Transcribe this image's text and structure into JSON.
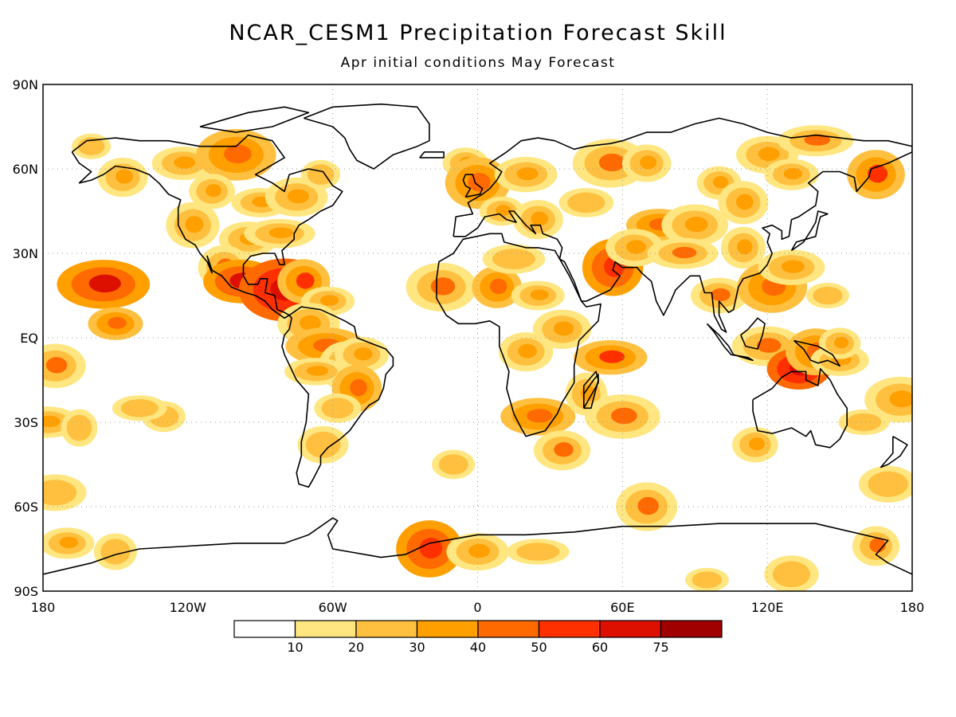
{
  "title": "NCAR_CESM1 Precipitation Forecast Skill",
  "subtitle": "Apr initial conditions  May Forecast",
  "map": {
    "projection": "equirectangular",
    "lon_range": [
      -180,
      180
    ],
    "lat_range": [
      -90,
      90
    ],
    "grid": true,
    "lat_labels": [
      "90N",
      "60N",
      "30N",
      "EQ",
      "30S",
      "60S",
      "90S"
    ],
    "lon_labels": [
      "180",
      "120W",
      "60W",
      "0",
      "60E",
      "120E",
      "180"
    ]
  },
  "legend": {
    "placement": "bottom-center",
    "colors": [
      "#ffffff",
      "#ffe680",
      "#ffc040",
      "#ffa000",
      "#ff6a00",
      "#ff3000",
      "#dd1000",
      "#a00000"
    ],
    "labels": [
      "10",
      "20",
      "30",
      "40",
      "50",
      "60",
      "75"
    ]
  },
  "skill_regions": [
    {
      "lon": -160,
      "lat": 68,
      "value": 25
    },
    {
      "lon": -147,
      "lat": 57,
      "value": 30
    },
    {
      "lon": -122,
      "lat": 62,
      "value": 35
    },
    {
      "lon": -100,
      "lat": 65,
      "value": 45
    },
    {
      "lon": -110,
      "lat": 52,
      "value": 30
    },
    {
      "lon": -90,
      "lat": 48,
      "value": 35
    },
    {
      "lon": -75,
      "lat": 50,
      "value": 30
    },
    {
      "lon": -65,
      "lat": 58,
      "value": 25
    },
    {
      "lon": -118,
      "lat": 40,
      "value": 35
    },
    {
      "lon": -95,
      "lat": 35,
      "value": 30
    },
    {
      "lon": -82,
      "lat": 37,
      "value": 35
    },
    {
      "lon": -105,
      "lat": 25,
      "value": 40
    },
    {
      "lon": -98,
      "lat": 20,
      "value": 60
    },
    {
      "lon": -80,
      "lat": 17,
      "value": 65
    },
    {
      "lon": -72,
      "lat": 20,
      "value": 50
    },
    {
      "lon": -62,
      "lat": 13,
      "value": 35
    },
    {
      "lon": -70,
      "lat": 5,
      "value": 35
    },
    {
      "lon": -63,
      "lat": -3,
      "value": 45
    },
    {
      "lon": -55,
      "lat": -10,
      "value": 40
    },
    {
      "lon": -48,
      "lat": -6,
      "value": 30
    },
    {
      "lon": -67,
      "lat": -12,
      "value": 30
    },
    {
      "lon": -50,
      "lat": -18,
      "value": 45
    },
    {
      "lon": -58,
      "lat": -25,
      "value": 25
    },
    {
      "lon": -64,
      "lat": -38,
      "value": 20
    },
    {
      "lon": -155,
      "lat": 19,
      "value": 60
    },
    {
      "lon": -150,
      "lat": 5,
      "value": 45
    },
    {
      "lon": -175,
      "lat": -10,
      "value": 40
    },
    {
      "lon": -178,
      "lat": -30,
      "value": 30
    },
    {
      "lon": -165,
      "lat": -32,
      "value": 20
    },
    {
      "lon": -130,
      "lat": -28,
      "value": 20
    },
    {
      "lon": -140,
      "lat": -25,
      "value": 25
    },
    {
      "lon": -175,
      "lat": -55,
      "value": 25
    },
    {
      "lon": -5,
      "lat": 62,
      "value": 30
    },
    {
      "lon": 0,
      "lat": 55,
      "value": 45
    },
    {
      "lon": 20,
      "lat": 58,
      "value": 30
    },
    {
      "lon": 10,
      "lat": 45,
      "value": 35
    },
    {
      "lon": 25,
      "lat": 42,
      "value": 30
    },
    {
      "lon": 45,
      "lat": 48,
      "value": 25
    },
    {
      "lon": 55,
      "lat": 62,
      "value": 40
    },
    {
      "lon": 70,
      "lat": 62,
      "value": 35
    },
    {
      "lon": 75,
      "lat": 40,
      "value": 45
    },
    {
      "lon": 90,
      "lat": 40,
      "value": 35
    },
    {
      "lon": 100,
      "lat": 55,
      "value": 35
    },
    {
      "lon": 110,
      "lat": 48,
      "value": 30
    },
    {
      "lon": 120,
      "lat": 65,
      "value": 35
    },
    {
      "lon": 140,
      "lat": 70,
      "value": 40
    },
    {
      "lon": 165,
      "lat": 58,
      "value": 50
    },
    {
      "lon": 130,
      "lat": 58,
      "value": 30
    },
    {
      "lon": -15,
      "lat": 18,
      "value": 40
    },
    {
      "lon": 8,
      "lat": 18,
      "value": 45
    },
    {
      "lon": 25,
      "lat": 15,
      "value": 35
    },
    {
      "lon": 35,
      "lat": 3,
      "value": 30
    },
    {
      "lon": 15,
      "lat": 28,
      "value": 25
    },
    {
      "lon": 56,
      "lat": 25,
      "value": 55
    },
    {
      "lon": 65,
      "lat": 32,
      "value": 35
    },
    {
      "lon": 85,
      "lat": 30,
      "value": 40
    },
    {
      "lon": 110,
      "lat": 32,
      "value": 35
    },
    {
      "lon": 100,
      "lat": 15,
      "value": 40
    },
    {
      "lon": 122,
      "lat": 18,
      "value": 45
    },
    {
      "lon": 130,
      "lat": 25,
      "value": 30
    },
    {
      "lon": 145,
      "lat": 15,
      "value": 25
    },
    {
      "lon": 20,
      "lat": -5,
      "value": 30
    },
    {
      "lon": 25,
      "lat": -28,
      "value": 45
    },
    {
      "lon": 45,
      "lat": -20,
      "value": 30
    },
    {
      "lon": 35,
      "lat": -40,
      "value": 40
    },
    {
      "lon": 55,
      "lat": -7,
      "value": 50
    },
    {
      "lon": 60,
      "lat": -28,
      "value": 40
    },
    {
      "lon": -10,
      "lat": -45,
      "value": 25
    },
    {
      "lon": 70,
      "lat": -60,
      "value": 40
    },
    {
      "lon": 120,
      "lat": -3,
      "value": 40
    },
    {
      "lon": 133,
      "lat": -11,
      "value": 70
    },
    {
      "lon": 140,
      "lat": -5,
      "value": 45
    },
    {
      "lon": 150,
      "lat": -8,
      "value": 30
    },
    {
      "lon": 175,
      "lat": -22,
      "value": 35
    },
    {
      "lon": 115,
      "lat": -38,
      "value": 30
    },
    {
      "lon": 160,
      "lat": -30,
      "value": 25
    },
    {
      "lon": 170,
      "lat": -52,
      "value": 25
    },
    {
      "lon": 150,
      "lat": -2,
      "value": 30
    },
    {
      "lon": -20,
      "lat": -75,
      "value": 55
    },
    {
      "lon": 0,
      "lat": -76,
      "value": 35
    },
    {
      "lon": 25,
      "lat": -76,
      "value": 25
    },
    {
      "lon": -150,
      "lat": -76,
      "value": 25
    },
    {
      "lon": -170,
      "lat": -73,
      "value": 30
    },
    {
      "lon": 130,
      "lat": -84,
      "value": 20
    },
    {
      "lon": 165,
      "lat": -74,
      "value": 40
    },
    {
      "lon": 95,
      "lat": -86,
      "value": 20
    }
  ]
}
